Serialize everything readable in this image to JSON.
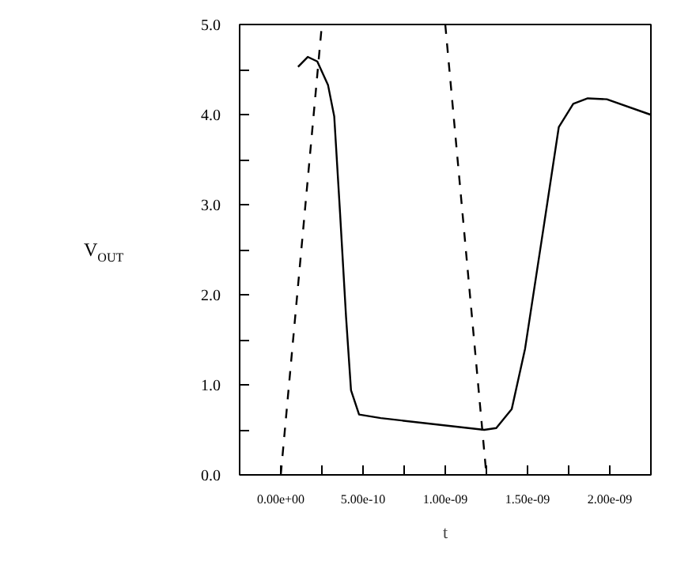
{
  "chart_data": {
    "type": "line",
    "xlabel": "t",
    "ylabel": "V$_{OUT}$",
    "xlim": [
      -2.5e-10,
      2.25e-09
    ],
    "ylim": [
      0.0,
      5.0
    ],
    "xticks": [
      {
        "value": 0,
        "label": "0.00e+00"
      },
      {
        "value": 2.5e-10,
        "label": null
      },
      {
        "value": 5e-10,
        "label": "5.00e-10"
      },
      {
        "value": 7.5e-10,
        "label": null
      },
      {
        "value": 1e-09,
        "label": "1.00e-09"
      },
      {
        "value": 1.25e-09,
        "label": null
      },
      {
        "value": 1.5e-09,
        "label": "1.50e-09"
      },
      {
        "value": 1.75e-09,
        "label": null
      },
      {
        "value": 2e-09,
        "label": "2.00e-09"
      }
    ],
    "yticks": [
      {
        "value": 0,
        "label": "0.0"
      },
      {
        "value": 0.5,
        "label": null
      },
      {
        "value": 1,
        "label": "1.0"
      },
      {
        "value": 1.5,
        "label": null
      },
      {
        "value": 2,
        "label": "2.0"
      },
      {
        "value": 2.5,
        "label": null
      },
      {
        "value": 3,
        "label": "3.0"
      },
      {
        "value": 3.5,
        "label": null
      },
      {
        "value": 4,
        "label": "4.0"
      },
      {
        "value": 4.5,
        "label": null
      },
      {
        "value": 5,
        "label": "5.0"
      }
    ],
    "grid": false,
    "series": [
      {
        "color": "#000000",
        "line_style": "solid",
        "x": [
          1.05e-10,
          1.64e-10,
          2.22e-10,
          2.87e-10,
          3.25e-10,
          3.6e-10,
          3.97e-10,
          4.27e-10,
          4.76e-10,
          6.08e-10,
          1.237e-09,
          1.31e-09,
          1.404e-09,
          1.485e-09,
          1.603e-09,
          1.69e-09,
          1.778e-09,
          1.866e-09,
          1.982e-09,
          2.246e-09
        ],
        "values": [
          4.53,
          4.64,
          4.59,
          4.33,
          3.98,
          2.92,
          1.75,
          0.94,
          0.67,
          0.63,
          0.5,
          0.52,
          0.73,
          1.4,
          2.81,
          3.86,
          4.12,
          4.18,
          4.17,
          4.0
        ]
      },
      {
        "color": "#000000",
        "line_style": "dashed",
        "x": [
          0,
          2.5e-10
        ],
        "values": [
          0.0,
          5.0
        ]
      },
      {
        "color": "#000000",
        "line_style": "dashed",
        "x": [
          1e-09,
          1.25e-09
        ],
        "values": [
          5.0,
          0.0
        ]
      }
    ]
  }
}
